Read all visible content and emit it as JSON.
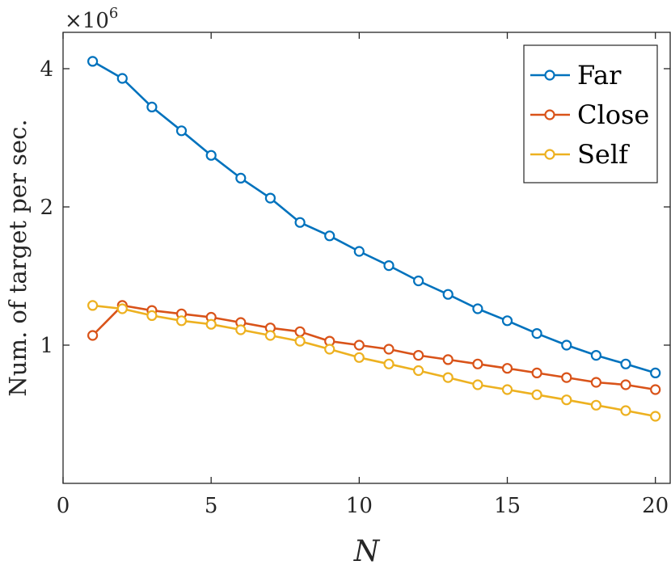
{
  "chart_data": {
    "type": "line",
    "xlabel": "N",
    "ylabel": "Num. of target per sec.",
    "y_exponent_label": "×10",
    "y_exponent_power": "6",
    "y_scale": "log",
    "xlim": [
      0,
      20.5
    ],
    "ylim": [
      0.5,
      4.8
    ],
    "x_ticks": [
      0,
      5,
      10,
      15,
      20
    ],
    "y_ticks": [
      1,
      2,
      4
    ],
    "x_tick_labels": [
      "0",
      "5",
      "10",
      "15",
      "20"
    ],
    "y_tick_labels": [
      "1",
      "2",
      "4"
    ],
    "legend_position": "top-right",
    "grid": false,
    "x": [
      1,
      2,
      3,
      4,
      5,
      6,
      7,
      8,
      9,
      10,
      11,
      12,
      13,
      14,
      15,
      16,
      17,
      18,
      19,
      20
    ],
    "series": [
      {
        "name": "Far",
        "color": "#0072BD",
        "values": [
          4.15,
          3.81,
          3.3,
          2.93,
          2.59,
          2.31,
          2.09,
          1.85,
          1.73,
          1.6,
          1.49,
          1.38,
          1.29,
          1.2,
          1.13,
          1.06,
          1.0,
          0.95,
          0.91,
          0.87
        ]
      },
      {
        "name": "Close",
        "color": "#D95319",
        "values": [
          1.05,
          1.22,
          1.19,
          1.17,
          1.15,
          1.12,
          1.09,
          1.07,
          1.02,
          1.0,
          0.98,
          0.95,
          0.93,
          0.91,
          0.89,
          0.87,
          0.85,
          0.83,
          0.82,
          0.8
        ]
      },
      {
        "name": "Self",
        "color": "#EDB120",
        "values": [
          1.22,
          1.2,
          1.16,
          1.13,
          1.11,
          1.08,
          1.05,
          1.02,
          0.98,
          0.94,
          0.91,
          0.88,
          0.85,
          0.82,
          0.8,
          0.78,
          0.76,
          0.74,
          0.72,
          0.7
        ]
      }
    ]
  }
}
